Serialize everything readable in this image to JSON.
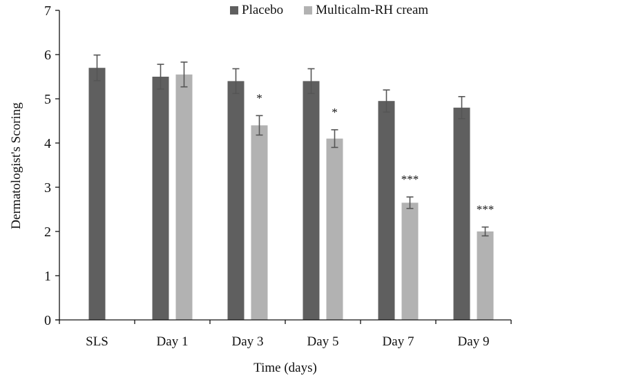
{
  "chart_data": {
    "type": "bar",
    "title": "",
    "xlabel": "Time (days)",
    "ylabel": "Dermatologist's Scoring",
    "ylim": [
      0,
      7
    ],
    "yticks": [
      "0",
      "1",
      "2",
      "3",
      "4",
      "5",
      "6",
      "7"
    ],
    "categories": [
      "SLS",
      "Day 1",
      "Day 3",
      "Day 5",
      "Day 7",
      "Day 9"
    ],
    "legend_position": "top",
    "grid": false,
    "series": [
      {
        "name": "Placebo",
        "color": "#5f5f5f",
        "values": [
          5.7,
          5.5,
          5.4,
          5.4,
          4.95,
          4.8
        ],
        "errors": [
          0.29,
          0.28,
          0.28,
          0.28,
          0.25,
          0.25
        ]
      },
      {
        "name": "Multicalm-RH cream",
        "color": "#b2b2b2",
        "values": [
          null,
          5.55,
          4.4,
          4.1,
          2.65,
          2.0
        ],
        "errors": [
          null,
          0.28,
          0.22,
          0.2,
          0.13,
          0.1
        ]
      }
    ],
    "annotations": [
      "",
      "",
      "*",
      "*",
      "***",
      "***"
    ]
  }
}
